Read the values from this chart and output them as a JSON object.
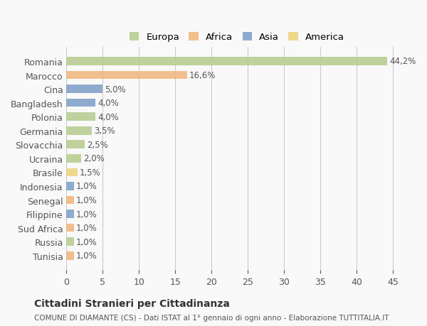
{
  "countries": [
    "Romania",
    "Marocco",
    "Cina",
    "Bangladesh",
    "Polonia",
    "Germania",
    "Slovacchia",
    "Ucraina",
    "Brasile",
    "Indonesia",
    "Senegal",
    "Filippine",
    "Sud Africa",
    "Russia",
    "Tunisia"
  ],
  "values": [
    44.2,
    16.6,
    5.0,
    4.0,
    4.0,
    3.5,
    2.5,
    2.0,
    1.5,
    1.0,
    1.0,
    1.0,
    1.0,
    1.0,
    1.0
  ],
  "labels": [
    "44,2%",
    "16,6%",
    "5,0%",
    "4,0%",
    "4,0%",
    "3,5%",
    "2,5%",
    "2,0%",
    "1,5%",
    "1,0%",
    "1,0%",
    "1,0%",
    "1,0%",
    "1,0%",
    "1,0%"
  ],
  "continent": [
    "Europa",
    "Africa",
    "Asia",
    "Asia",
    "Europa",
    "Europa",
    "Europa",
    "Europa",
    "America",
    "Asia",
    "Africa",
    "Asia",
    "Africa",
    "Europa",
    "Africa"
  ],
  "colors": {
    "Europa": "#b5cc8e",
    "Africa": "#f0b47c",
    "Asia": "#7b9dc7",
    "America": "#f0d07c"
  },
  "legend_order": [
    "Europa",
    "Africa",
    "Asia",
    "America"
  ],
  "title": "Cittadini Stranieri per Cittadinanza",
  "subtitle": "COMUNE DI DIAMANTE (CS) - Dati ISTAT al 1° gennaio di ogni anno - Elaborazione TUTTITALIA.IT",
  "xlim": [
    0,
    47
  ],
  "xticks": [
    0,
    5,
    10,
    15,
    20,
    25,
    30,
    35,
    40,
    45
  ],
  "bg_color": "#f9f9f9",
  "grid_color": "#cccccc"
}
